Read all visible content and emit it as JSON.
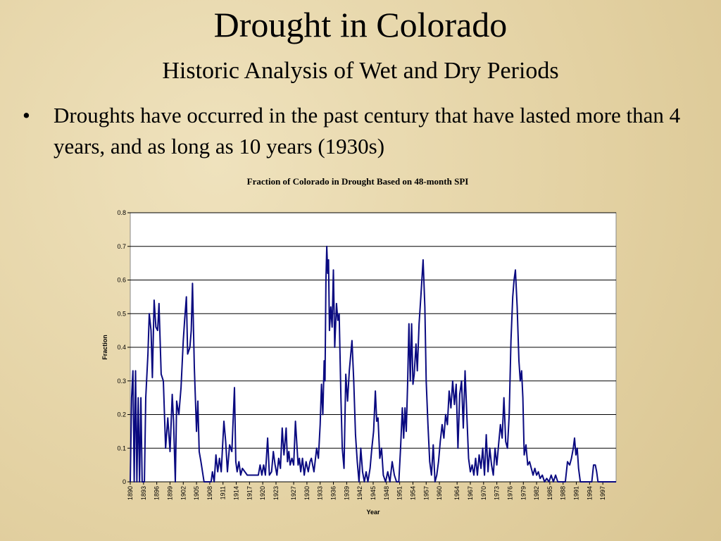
{
  "title": "Drought in Colorado",
  "subtitle": "Historic Analysis of Wet and Dry Periods",
  "bullets": [
    "Droughts have occurred in the past century that have lasted more than 4 years, and as long as 10 years (1930s)"
  ],
  "chart_data": {
    "type": "line",
    "title": "Fraction of Colorado in Drought Based on 48-month SPI",
    "x_label": "Year",
    "y_label": "Fraction",
    "xlim": [
      1890,
      2000
    ],
    "xticks": [
      1890,
      1893,
      1896,
      1899,
      1902,
      1905,
      1908,
      1911,
      1914,
      1917,
      1920,
      1923,
      1927,
      1930,
      1933,
      1936,
      1939,
      1942,
      1945,
      1948,
      1951,
      1954,
      1957,
      1960,
      1964,
      1967,
      1970,
      1973,
      1976,
      1979,
      1982,
      1985,
      1988,
      1991,
      1994,
      1997
    ],
    "ylim": [
      0,
      0.8
    ],
    "yticks": [
      0,
      0.1,
      0.2,
      0.3,
      0.4,
      0.5,
      0.6,
      0.7,
      0.8
    ],
    "grid": true,
    "x": [
      1890.0,
      1890.3,
      1890.6,
      1890.9,
      1891.2,
      1891.5,
      1891.8,
      1892.1,
      1892.4,
      1892.7,
      1893.2,
      1893.5,
      1894.0,
      1894.3,
      1894.7,
      1895.0,
      1895.4,
      1895.8,
      1896.2,
      1896.5,
      1897.0,
      1897.5,
      1898.0,
      1898.5,
      1899.0,
      1899.5,
      1899.8,
      1900.2,
      1900.5,
      1901.0,
      1901.5,
      1902.0,
      1902.3,
      1902.7,
      1903.0,
      1903.5,
      1903.8,
      1904.1,
      1904.5,
      1905.0,
      1905.3,
      1905.6,
      1906.0,
      1906.7,
      1907.5,
      1908.3,
      1908.6,
      1909.0,
      1909.4,
      1909.8,
      1910.2,
      1910.6,
      1911.2,
      1911.6,
      1912.0,
      1912.5,
      1913.0,
      1913.6,
      1913.9,
      1914.2,
      1914.6,
      1915.0,
      1915.4,
      1916.5,
      1918.0,
      1919.0,
      1919.4,
      1919.8,
      1920.2,
      1920.6,
      1921.1,
      1921.5,
      1922.0,
      1922.4,
      1922.8,
      1923.2,
      1923.6,
      1924.0,
      1924.4,
      1924.8,
      1925.3,
      1925.6,
      1925.9,
      1926.2,
      1926.6,
      1927.0,
      1927.4,
      1928.0,
      1928.3,
      1928.6,
      1929.0,
      1929.4,
      1929.8,
      1930.3,
      1930.7,
      1931.0,
      1931.6,
      1932.2,
      1932.6,
      1933.0,
      1933.3,
      1933.6,
      1933.9,
      1934.1,
      1934.3,
      1934.5,
      1934.7,
      1934.9,
      1935.1,
      1935.4,
      1935.7,
      1936.0,
      1936.3,
      1936.7,
      1937.0,
      1937.3,
      1937.7,
      1938.0,
      1938.4,
      1938.8,
      1939.2,
      1939.6,
      1940.2,
      1940.6,
      1941.0,
      1941.4,
      1941.8,
      1942.2,
      1942.6,
      1943.0,
      1943.4,
      1943.8,
      1944.3,
      1944.7,
      1945.1,
      1945.5,
      1945.8,
      1946.1,
      1946.5,
      1946.9,
      1947.3,
      1947.8,
      1948.3,
      1948.8,
      1949.3,
      1949.8,
      1950.3,
      1950.8,
      1951.2,
      1951.6,
      1951.9,
      1952.2,
      1952.5,
      1952.8,
      1953.1,
      1953.4,
      1953.7,
      1954.0,
      1954.3,
      1954.7,
      1955.0,
      1955.4,
      1955.8,
      1956.3,
      1956.7,
      1957.0,
      1957.4,
      1957.8,
      1958.2,
      1958.6,
      1959.0,
      1959.4,
      1959.8,
      1960.2,
      1960.6,
      1961.0,
      1961.4,
      1961.8,
      1962.2,
      1962.6,
      1963.0,
      1963.4,
      1963.8,
      1964.2,
      1964.6,
      1965.0,
      1965.4,
      1965.8,
      1966.2,
      1966.6,
      1967.0,
      1967.4,
      1967.8,
      1968.2,
      1968.6,
      1969.0,
      1969.4,
      1969.8,
      1970.2,
      1970.6,
      1971.0,
      1971.4,
      1971.8,
      1972.2,
      1972.6,
      1973.0,
      1973.4,
      1973.8,
      1974.2,
      1974.6,
      1975.0,
      1975.4,
      1975.8,
      1976.2,
      1976.6,
      1976.9,
      1977.2,
      1977.6,
      1978.0,
      1978.3,
      1978.6,
      1978.9,
      1979.2,
      1979.6,
      1980.0,
      1980.4,
      1980.8,
      1981.2,
      1981.6,
      1982.0,
      1982.4,
      1982.8,
      1983.3,
      1983.8,
      1984.3,
      1984.8,
      1985.3,
      1985.8,
      1986.3,
      1986.8,
      1988.5,
      1989.0,
      1989.5,
      1989.9,
      1990.3,
      1990.6,
      1990.9,
      1991.2,
      1991.5,
      1991.9,
      1994.5,
      1994.9,
      1995.3,
      1995.6,
      1995.9,
      2000.0
    ],
    "series": [
      {
        "name": "Fraction",
        "color": "#0a0a80",
        "values": [
          0,
          0.25,
          0.33,
          0,
          0.33,
          0,
          0.25,
          0,
          0.25,
          0,
          0,
          0.25,
          0.38,
          0.5,
          0.45,
          0.31,
          0.54,
          0.46,
          0.45,
          0.53,
          0.32,
          0.3,
          0.1,
          0.19,
          0.09,
          0.26,
          0.18,
          0,
          0.24,
          0.2,
          0.28,
          0.42,
          0.48,
          0.55,
          0.38,
          0.4,
          0.45,
          0.59,
          0.34,
          0.15,
          0.24,
          0.09,
          0.06,
          0,
          0,
          0,
          0.03,
          0,
          0.08,
          0.03,
          0.07,
          0.03,
          0.18,
          0.12,
          0.03,
          0.11,
          0.09,
          0.28,
          0.06,
          0.03,
          0.06,
          0.02,
          0.04,
          0.02,
          0.02,
          0.02,
          0.05,
          0.02,
          0.05,
          0.02,
          0.13,
          0.02,
          0.03,
          0.09,
          0.05,
          0.02,
          0.07,
          0.04,
          0.16,
          0.08,
          0.16,
          0.06,
          0.09,
          0.05,
          0.07,
          0.05,
          0.18,
          0.05,
          0.07,
          0.03,
          0.07,
          0.02,
          0.06,
          0.03,
          0.06,
          0.07,
          0.03,
          0.1,
          0.07,
          0.17,
          0.29,
          0.2,
          0.36,
          0.3,
          0.6,
          0.7,
          0.62,
          0.66,
          0.45,
          0.52,
          0.46,
          0.63,
          0.4,
          0.53,
          0.48,
          0.5,
          0.25,
          0.1,
          0.04,
          0.32,
          0.24,
          0.33,
          0.42,
          0.3,
          0.14,
          0.06,
          0,
          0.1,
          0.03,
          0,
          0.03,
          0,
          0.04,
          0.1,
          0.15,
          0.27,
          0.18,
          0.19,
          0.07,
          0.1,
          0.02,
          0,
          0.03,
          0,
          0.06,
          0.02,
          0,
          0,
          0.1,
          0.22,
          0.13,
          0.22,
          0.15,
          0.29,
          0.47,
          0.3,
          0.47,
          0.29,
          0.32,
          0.41,
          0.33,
          0.47,
          0.55,
          0.66,
          0.52,
          0.3,
          0.17,
          0.06,
          0.02,
          0.11,
          0,
          0.02,
          0.06,
          0.12,
          0.17,
          0.13,
          0.2,
          0.17,
          0.27,
          0.22,
          0.3,
          0.23,
          0.29,
          0.1,
          0.26,
          0.3,
          0.16,
          0.33,
          0.2,
          0.07,
          0.03,
          0.05,
          0.02,
          0.07,
          0.02,
          0.08,
          0.04,
          0.1,
          0.02,
          0.14,
          0.03,
          0.1,
          0.05,
          0.02,
          0.1,
          0.05,
          0.11,
          0.17,
          0.13,
          0.25,
          0.12,
          0.1,
          0.2,
          0.42,
          0.55,
          0.6,
          0.63,
          0.52,
          0.36,
          0.3,
          0.33,
          0.25,
          0.08,
          0.11,
          0.05,
          0.06,
          0.04,
          0.02,
          0.04,
          0.02,
          0.03,
          0.01,
          0.02,
          0,
          0.01,
          0,
          0.02,
          0,
          0.02,
          0,
          0,
          0.06,
          0.05,
          0.07,
          0.1,
          0.13,
          0.08,
          0.1,
          0.04,
          0,
          0,
          0.05,
          0.05,
          0.03,
          0,
          0
        ]
      }
    ]
  }
}
